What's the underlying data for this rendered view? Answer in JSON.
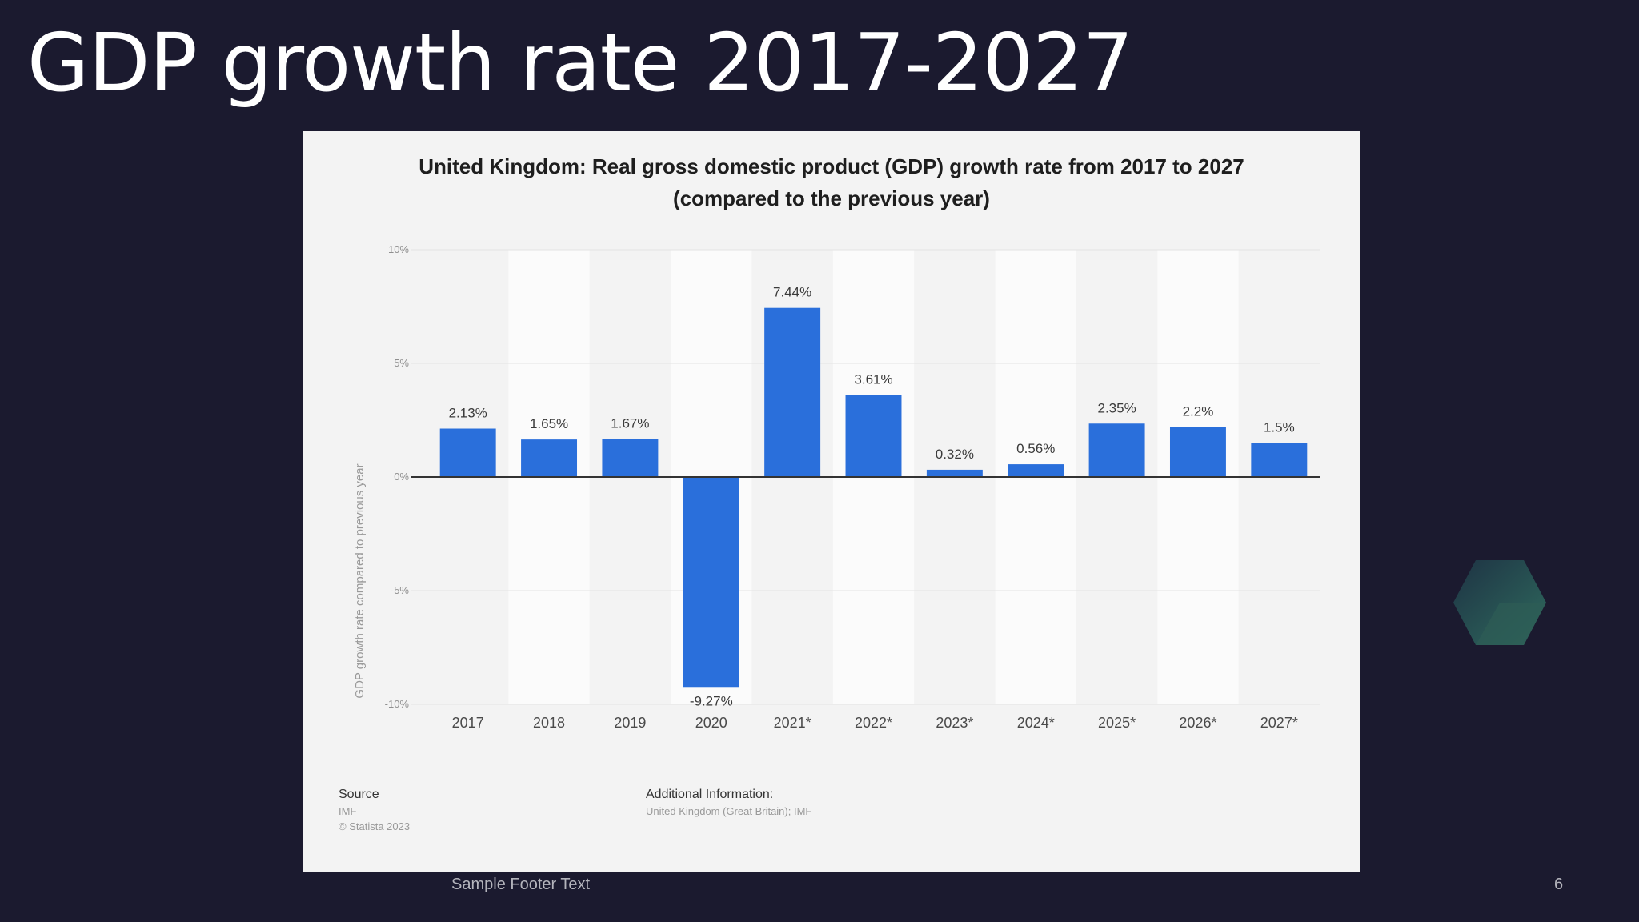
{
  "slide": {
    "title": "GDP growth rate 2017-2027",
    "footer": "Sample Footer Text",
    "page_number": "6"
  },
  "chart_data": {
    "type": "bar",
    "title_line1": "United Kingdom: Real gross domestic product (GDP) growth rate from 2017 to 2027",
    "title_line2": "(compared to the previous year)",
    "ylabel": "GDP growth rate compared to previous year",
    "ylim": [
      -10,
      10
    ],
    "yticks": [
      {
        "value": 10,
        "label": "10%"
      },
      {
        "value": 5,
        "label": "5%"
      },
      {
        "value": 0,
        "label": "0%"
      },
      {
        "value": -5,
        "label": "-5%"
      },
      {
        "value": -10,
        "label": "-10%"
      }
    ],
    "categories": [
      "2017",
      "2018",
      "2019",
      "2020",
      "2021*",
      "2022*",
      "2023*",
      "2024*",
      "2025*",
      "2026*",
      "2027*"
    ],
    "values": [
      2.13,
      1.65,
      1.67,
      -9.27,
      7.44,
      3.61,
      0.32,
      0.56,
      2.35,
      2.2,
      1.5
    ],
    "data_labels": [
      "2.13%",
      "1.65%",
      "1.67%",
      "-9.27%",
      "7.44%",
      "3.61%",
      "0.32%",
      "0.56%",
      "2.35%",
      "2.2%",
      "1.5%"
    ],
    "bar_color": "#2a6fdb",
    "grid": true,
    "source_heading": "Source",
    "source_lines": [
      "IMF",
      "© Statista 2023"
    ],
    "info_heading": "Additional Information:",
    "info_lines": [
      "United Kingdom (Great Britain); IMF"
    ]
  }
}
